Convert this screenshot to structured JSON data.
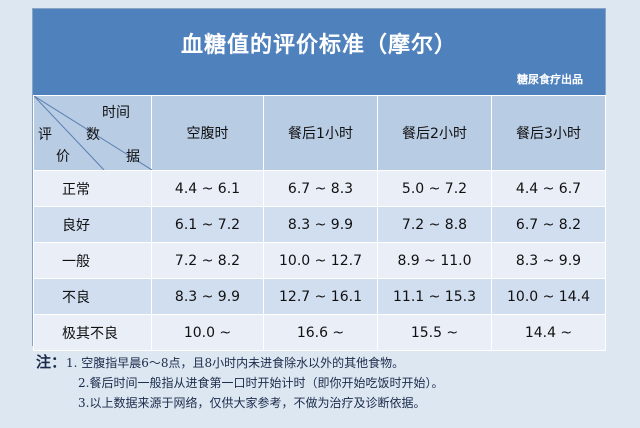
{
  "title": "血糖值的评价标准（摩尔）",
  "credit": "糖尿食疗出品",
  "header": {
    "corner": {
      "time": "时间",
      "eval": "评",
      "num": "数",
      "price": "价",
      "data": "据"
    },
    "columns": [
      "空腹时",
      "餐后1小时",
      "餐后2小时",
      "餐后3小时"
    ]
  },
  "rows": [
    {
      "label": "正常",
      "cells": [
        "4.4 ~ 6.1",
        "6.7 ~ 8.3",
        "5.0 ~ 7.2",
        "4.4 ~ 6.7"
      ]
    },
    {
      "label": "良好",
      "cells": [
        "6.1 ~ 7.2",
        "8.3 ~ 9.9",
        "7.2 ~ 8.8",
        "6.7 ~ 8.2"
      ]
    },
    {
      "label": "一般",
      "cells": [
        "7.2 ~ 8.2",
        "10.0 ~ 12.7",
        "8.9 ~ 11.0",
        "8.3 ~ 9.9"
      ]
    },
    {
      "label": "不良",
      "cells": [
        "8.3 ~ 9.9",
        "12.7 ~ 16.1",
        "11.1 ~ 15.3",
        "10.0 ~ 14.4"
      ]
    },
    {
      "label": "极其不良",
      "cells": [
        "10.0 ~",
        "16.6 ~",
        "15.5 ~",
        "14.4 ~"
      ]
    }
  ],
  "notes": {
    "lead": "注：",
    "items": [
      "1. 空腹指早晨6～8点，且8小时内未进食除水以外的其他食物。",
      "2.餐后时间一般指从进食第一口时开始计时（即你开始吃饭时开始）。",
      "3.以上数据来源于网络，仅供大家参考，不做为治疗及诊断依据。"
    ]
  },
  "colors": {
    "banner": "#4f81bd",
    "header_row": "#b8cce4",
    "row_light": "#e9eef7",
    "row_dark": "#d0def0"
  }
}
